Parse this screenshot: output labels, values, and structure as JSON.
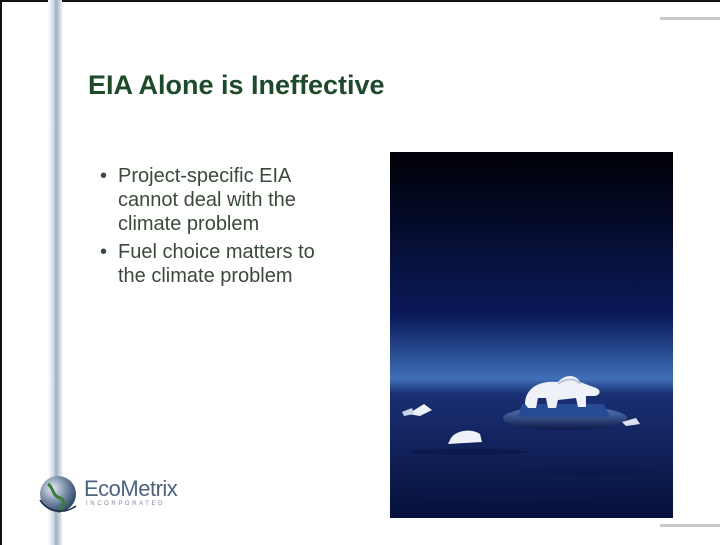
{
  "slide": {
    "title": "EIA Alone is Ineffective",
    "bullets": [
      "Project-specific EIA cannot deal with the climate problem",
      "Fuel choice matters to the climate problem"
    ]
  },
  "logo": {
    "name": "EcoMetrix",
    "subtitle": "INCORPORATED"
  }
}
